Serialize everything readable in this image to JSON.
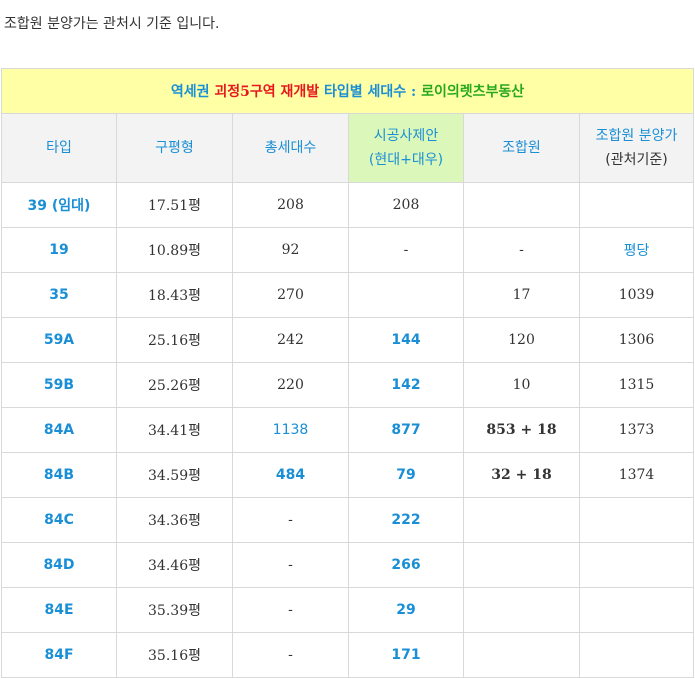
{
  "intro_text": "조합원 분양가는 관처시 기준 입니다.",
  "title": {
    "part1": "역세권 ",
    "part2": "괴정5구역 재개발",
    "part3": " 타입별 세대수 : ",
    "part4": "로이의렛츠부동산"
  },
  "headers": {
    "type": "타입",
    "size": "구평형",
    "total": "총세대수",
    "proposal_line1": "시공사제안",
    "proposal_line2": "(현대+대우)",
    "member": "조합원",
    "price_line1": "조합원 분양가",
    "price_line2": "(관처기준)"
  },
  "rows": [
    {
      "type": "39 (임대)",
      "size": "17.51평",
      "total": "208",
      "proposal": "208",
      "member": "",
      "price": ""
    },
    {
      "type": "19",
      "size": "10.89평",
      "total": "92",
      "proposal": "-",
      "member": "-",
      "price": "평당"
    },
    {
      "type": "35",
      "size": "18.43평",
      "total": "270",
      "proposal": "",
      "member": "17",
      "price": "1039"
    },
    {
      "type": "59A",
      "size": "25.16평",
      "total": "242",
      "proposal": "144",
      "member": "120",
      "price": "1306"
    },
    {
      "type": "59B",
      "size": "25.26평",
      "total": "220",
      "proposal": "142",
      "member": "10",
      "price": "1315"
    },
    {
      "type": "84A",
      "size": "34.41평",
      "total": "1138",
      "proposal": "877",
      "member": "853 + 18",
      "price": "1373"
    },
    {
      "type": "84B",
      "size": "34.59평",
      "total": "484",
      "proposal": "79",
      "member": "32 + 18",
      "price": "1374"
    },
    {
      "type": "84C",
      "size": "34.36평",
      "total": "-",
      "proposal": "222",
      "member": "",
      "price": ""
    },
    {
      "type": "84D",
      "size": "34.46평",
      "total": "-",
      "proposal": "266",
      "member": "",
      "price": ""
    },
    {
      "type": "84E",
      "size": "35.39평",
      "total": "-",
      "proposal": "29",
      "member": "",
      "price": ""
    },
    {
      "type": "84F",
      "size": "35.16평",
      "total": "-",
      "proposal": "171",
      "member": "",
      "price": ""
    }
  ],
  "colors": {
    "accent_blue": "#1a8fd6",
    "title_red": "#e8171f",
    "title_green": "#29a81f",
    "title_bg": "#ffffa5",
    "proposal_header_bg": "#dcf7ba"
  }
}
